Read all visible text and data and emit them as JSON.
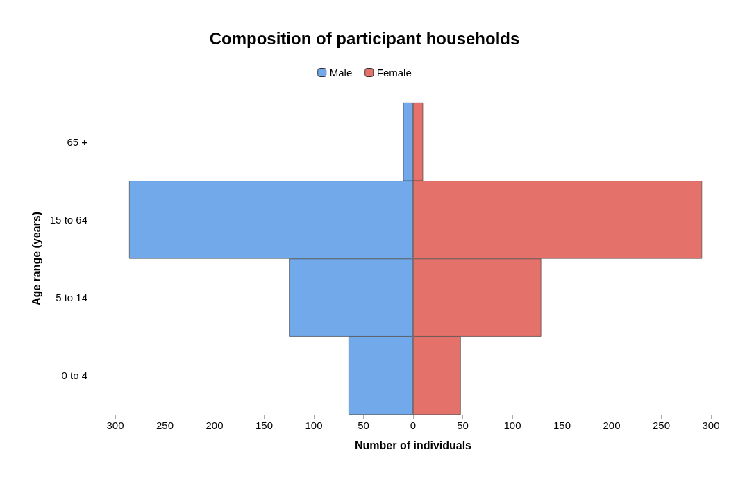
{
  "chart_data": {
    "type": "bar",
    "orientation": "horizontal",
    "stacked": true,
    "title": "Composition of participant households",
    "xlabel": "Number of individuals",
    "ylabel": "Age range (years)",
    "categories": [
      "65 +",
      "15 to 64",
      "5 to 14",
      "0 to 4"
    ],
    "series": [
      {
        "name": "Male",
        "color": "#72a9ea",
        "values": [
          -10,
          -286,
          -125,
          -65
        ]
      },
      {
        "name": "Female",
        "color": "#e5726a",
        "values": [
          10,
          291,
          129,
          48
        ]
      }
    ],
    "xlim": [
      -300,
      300
    ],
    "xticks": [
      {
        "value": -300,
        "label": "300"
      },
      {
        "value": -250,
        "label": "250"
      },
      {
        "value": -200,
        "label": "200"
      },
      {
        "value": -150,
        "label": "150"
      },
      {
        "value": -100,
        "label": "100"
      },
      {
        "value": -50,
        "label": "50"
      },
      0,
      50,
      100,
      150,
      200,
      250,
      300
    ],
    "grid": false,
    "legend": "top"
  }
}
